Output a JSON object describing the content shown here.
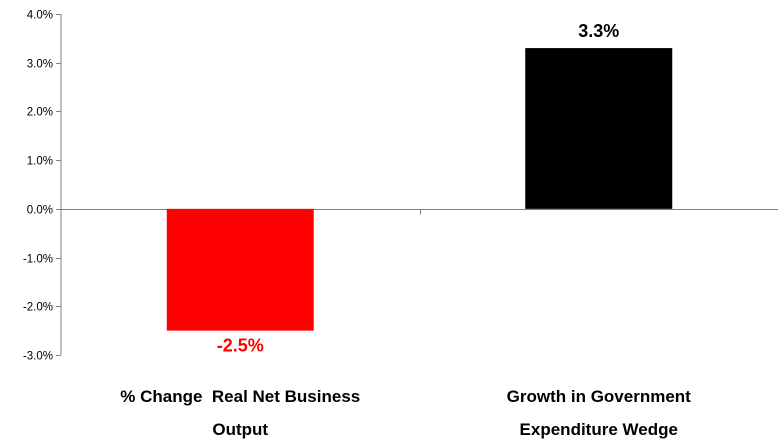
{
  "chart_data": {
    "type": "bar",
    "categories": [
      [
        "% Change  Real Net Business",
        "Output"
      ],
      [
        "Growth in Government",
        "Expenditure Wedge"
      ]
    ],
    "values": [
      -2.5,
      3.3
    ],
    "data_labels": [
      "-2.5%",
      "3.3%"
    ],
    "bar_colors": [
      "#ff0000",
      "#000000"
    ],
    "label_colors": [
      "#ff0000",
      "#000000"
    ],
    "ylim": [
      -3.0,
      4.0
    ],
    "y_ticks": [
      4.0,
      3.0,
      2.0,
      1.0,
      0.0,
      -1.0,
      -2.0,
      -3.0
    ],
    "y_tick_labels": [
      "4.0%",
      "3.0%",
      "2.0%",
      "1.0%",
      "0.0%",
      "-1.0%",
      "-2.0%",
      "-3.0%"
    ],
    "grid": false,
    "legend": "none",
    "title": "",
    "xlabel": "",
    "ylabel": ""
  }
}
